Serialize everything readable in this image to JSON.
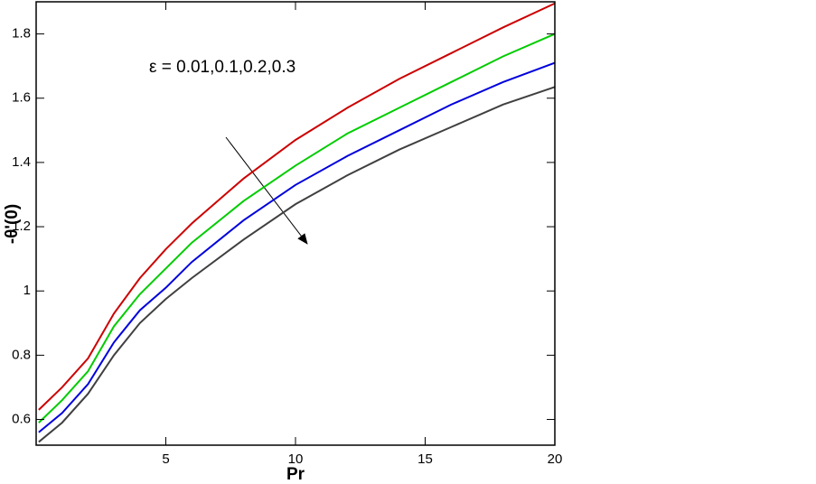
{
  "chart_data": {
    "type": "line",
    "x_label": "Pr",
    "y_label": "-θ'(0)",
    "annotation": "ε = 0.01,0.1,0.2,0.3",
    "x": [
      0.1,
      1,
      2,
      3,
      4,
      5,
      6,
      8,
      10,
      12,
      14,
      16,
      18,
      20
    ],
    "series": [
      {
        "color": "#cc0000",
        "values": [
          0.63,
          0.7,
          0.79,
          0.93,
          1.04,
          1.13,
          1.21,
          1.35,
          1.47,
          1.57,
          1.66,
          1.74,
          1.82,
          1.895
        ]
      },
      {
        "color": "#00cc00",
        "values": [
          0.59,
          0.66,
          0.75,
          0.89,
          0.99,
          1.07,
          1.15,
          1.28,
          1.39,
          1.49,
          1.57,
          1.65,
          1.73,
          1.8
        ]
      },
      {
        "color": "#0000dd",
        "values": [
          0.56,
          0.62,
          0.71,
          0.84,
          0.94,
          1.01,
          1.09,
          1.22,
          1.33,
          1.42,
          1.5,
          1.58,
          1.65,
          1.71
        ]
      },
      {
        "color": "#404040",
        "values": [
          0.53,
          0.59,
          0.68,
          0.8,
          0.9,
          0.975,
          1.04,
          1.16,
          1.27,
          1.36,
          1.44,
          1.51,
          1.58,
          1.635
        ]
      }
    ],
    "xlim": [
      0,
      20
    ],
    "xticks": [
      5,
      10,
      15,
      20
    ],
    "ylim": [
      0.52,
      1.9
    ],
    "yticks": [
      0.6,
      0.8,
      1,
      1.2,
      1.4,
      1.6,
      1.8
    ]
  }
}
